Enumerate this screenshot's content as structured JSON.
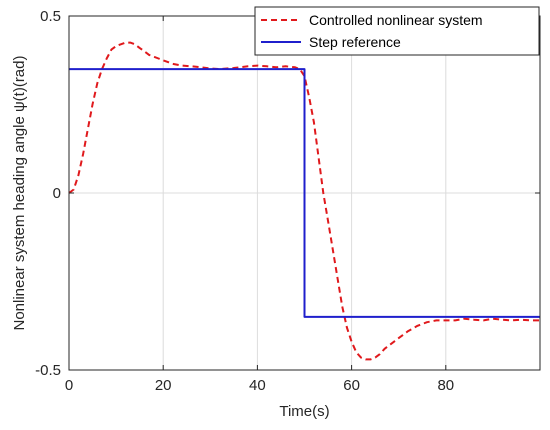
{
  "chart_data": {
    "type": "line",
    "xlabel": "Time(s)",
    "ylabel": "Nonlinear system heading angle ψ(t)(rad)",
    "xlim": [
      0,
      100
    ],
    "ylim": [
      -0.5,
      0.5
    ],
    "xticks": [
      0,
      20,
      40,
      60,
      80
    ],
    "xtick_labels": [
      "0",
      "20",
      "40",
      "60",
      "80"
    ],
    "yticks": [
      -0.5,
      0,
      0.5
    ],
    "ytick_labels": [
      "-0.5",
      "0",
      "0.5"
    ],
    "grid": true,
    "legend_position": "top-right",
    "series": [
      {
        "name": "Controlled nonlinear system",
        "color": "#e0191c",
        "style": "dashed",
        "x": [
          0,
          1,
          2,
          3,
          4,
          5,
          6,
          7,
          8,
          9,
          10,
          11,
          12,
          13,
          14,
          15,
          16,
          17,
          18,
          19,
          20,
          22,
          24,
          26,
          28,
          30,
          32,
          35,
          38,
          40,
          42,
          44,
          46,
          48,
          49,
          50,
          51,
          52,
          53,
          54,
          55,
          56,
          57,
          58,
          59,
          60,
          61,
          62,
          63,
          64,
          65,
          66,
          67,
          68,
          70,
          72,
          74,
          76,
          78,
          80,
          82,
          84,
          86,
          88,
          90,
          92,
          94,
          96,
          98,
          100
        ],
        "y": [
          0.0,
          0.01,
          0.05,
          0.11,
          0.18,
          0.25,
          0.31,
          0.35,
          0.38,
          0.405,
          0.415,
          0.42,
          0.425,
          0.425,
          0.42,
          0.41,
          0.4,
          0.39,
          0.385,
          0.38,
          0.375,
          0.365,
          0.36,
          0.358,
          0.355,
          0.352,
          0.35,
          0.353,
          0.358,
          0.36,
          0.358,
          0.355,
          0.358,
          0.355,
          0.35,
          0.33,
          0.27,
          0.2,
          0.1,
          0.0,
          -0.08,
          -0.16,
          -0.24,
          -0.32,
          -0.38,
          -0.42,
          -0.45,
          -0.465,
          -0.47,
          -0.47,
          -0.465,
          -0.455,
          -0.44,
          -0.43,
          -0.41,
          -0.39,
          -0.375,
          -0.365,
          -0.36,
          -0.36,
          -0.36,
          -0.355,
          -0.358,
          -0.36,
          -0.355,
          -0.358,
          -0.36,
          -0.358,
          -0.36,
          -0.36
        ]
      },
      {
        "name": "Step reference",
        "color": "#1f1fcc",
        "style": "solid",
        "x": [
          0,
          50,
          50,
          100
        ],
        "y": [
          0.35,
          0.35,
          -0.35,
          -0.35
        ]
      }
    ]
  }
}
